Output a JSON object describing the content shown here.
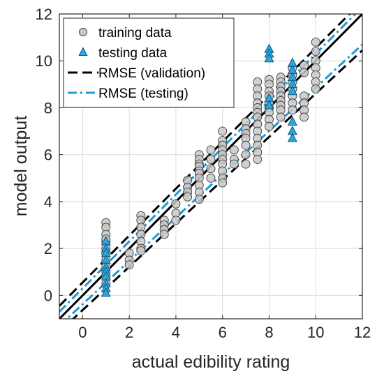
{
  "chart_data": {
    "type": "scatter",
    "title": "",
    "xlabel": "actual edibility rating",
    "ylabel": "model output",
    "xlim": [
      -1,
      12
    ],
    "ylim": [
      -1,
      12
    ],
    "xticks": [
      0,
      2,
      4,
      6,
      8,
      10,
      12
    ],
    "yticks": [
      0,
      2,
      4,
      6,
      8,
      10,
      12
    ],
    "grid": true,
    "legend_position": "top-left",
    "colors": {
      "training_fill": "#c8c8c8",
      "training_edge": "#3a3a3a",
      "testing_fill": "#2aa7dc",
      "testing_edge": "#0d4f73",
      "rmse_validation": "#000000",
      "rmse_testing": "#1e9ad6",
      "identity": "#000000"
    },
    "series": [
      {
        "name": "training data",
        "marker": "circle",
        "points": [
          [
            1,
            3.1
          ],
          [
            1,
            2.9
          ],
          [
            1,
            2.6
          ],
          [
            1,
            2.3
          ],
          [
            1,
            2.0
          ],
          [
            1,
            1.8
          ],
          [
            1,
            1.5
          ],
          [
            1,
            1.2
          ],
          [
            1,
            1.0
          ],
          [
            1,
            0.8
          ],
          [
            1,
            0.5
          ],
          [
            1,
            2.4
          ],
          [
            2,
            1.8
          ],
          [
            2,
            1.5
          ],
          [
            2,
            1.3
          ],
          [
            2.5,
            3.4
          ],
          [
            2.5,
            3.2
          ],
          [
            2.5,
            2.9
          ],
          [
            2.5,
            2.6
          ],
          [
            2.5,
            2.3
          ],
          [
            2.5,
            2.0
          ],
          [
            2.5,
            1.9
          ],
          [
            3.5,
            3.2
          ],
          [
            3.5,
            3.0
          ],
          [
            3.5,
            2.8
          ],
          [
            3.5,
            2.6
          ],
          [
            4,
            3.9
          ],
          [
            4,
            3.5
          ],
          [
            4,
            3.2
          ],
          [
            4.5,
            4.9
          ],
          [
            4.5,
            4.6
          ],
          [
            4.5,
            4.4
          ],
          [
            4.5,
            4.2
          ],
          [
            5,
            6.0
          ],
          [
            5,
            5.8
          ],
          [
            5,
            5.6
          ],
          [
            5,
            5.5
          ],
          [
            5,
            5.3
          ],
          [
            5,
            5.2
          ],
          [
            5,
            5.0
          ],
          [
            5,
            4.7
          ],
          [
            5,
            4.4
          ],
          [
            5,
            4.1
          ],
          [
            5.5,
            6.2
          ],
          [
            5.5,
            5.8
          ],
          [
            5.5,
            5.4
          ],
          [
            5.5,
            5.0
          ],
          [
            6,
            7.0
          ],
          [
            6,
            6.6
          ],
          [
            6,
            6.4
          ],
          [
            6,
            6.2
          ],
          [
            6,
            6.0
          ],
          [
            6,
            5.8
          ],
          [
            6,
            5.6
          ],
          [
            6,
            5.3
          ],
          [
            6,
            5.0
          ],
          [
            6,
            4.8
          ],
          [
            6.5,
            6.2
          ],
          [
            6.5,
            5.8
          ],
          [
            6.5,
            5.6
          ],
          [
            7,
            7.4
          ],
          [
            7,
            7.1
          ],
          [
            7,
            6.9
          ],
          [
            7,
            6.7
          ],
          [
            7,
            6.4
          ],
          [
            7,
            6.0
          ],
          [
            7,
            5.6
          ],
          [
            7.5,
            9.1
          ],
          [
            7.5,
            8.8
          ],
          [
            7.5,
            8.5
          ],
          [
            7.5,
            8.2
          ],
          [
            7.5,
            8.0
          ],
          [
            7.5,
            7.8
          ],
          [
            7.5,
            7.6
          ],
          [
            7.5,
            7.3
          ],
          [
            7.5,
            7.0
          ],
          [
            7.5,
            6.7
          ],
          [
            7.5,
            6.4
          ],
          [
            7.5,
            6.1
          ],
          [
            7.5,
            5.8
          ],
          [
            8,
            9.2
          ],
          [
            8,
            9.0
          ],
          [
            8,
            8.7
          ],
          [
            8,
            8.5
          ],
          [
            8,
            8.2
          ],
          [
            8,
            8.0
          ],
          [
            8,
            7.8
          ],
          [
            8,
            7.5
          ],
          [
            8,
            7.2
          ],
          [
            8.5,
            9.3
          ],
          [
            8.5,
            9.1
          ],
          [
            8.5,
            8.9
          ],
          [
            8.5,
            8.7
          ],
          [
            8.5,
            8.5
          ],
          [
            8.5,
            8.3
          ],
          [
            8.5,
            8.1
          ],
          [
            8.5,
            7.9
          ],
          [
            8.5,
            7.6
          ],
          [
            9,
            9.7
          ],
          [
            9,
            9.4
          ],
          [
            9,
            9.1
          ],
          [
            9,
            8.8
          ],
          [
            9,
            8.5
          ],
          [
            9,
            8.2
          ],
          [
            9,
            7.9
          ],
          [
            9.5,
            9.8
          ],
          [
            9.5,
            9.5
          ],
          [
            9.5,
            8.5
          ],
          [
            9.5,
            8.2
          ],
          [
            9.5,
            7.9
          ],
          [
            9.5,
            7.6
          ],
          [
            10,
            10.8
          ],
          [
            10,
            10.4
          ],
          [
            10,
            10.0
          ],
          [
            10,
            9.7
          ],
          [
            10,
            9.4
          ],
          [
            10,
            9.1
          ],
          [
            10,
            8.8
          ]
        ]
      },
      {
        "name": "testing data",
        "marker": "triangle",
        "points": [
          [
            1,
            2.3
          ],
          [
            1,
            2.0
          ],
          [
            1,
            1.8
          ],
          [
            1,
            1.5
          ],
          [
            1,
            1.2
          ],
          [
            1,
            1.0
          ],
          [
            1,
            0.8
          ],
          [
            1,
            0.5
          ],
          [
            1,
            0.3
          ],
          [
            1,
            0.1
          ],
          [
            8,
            10.5
          ],
          [
            8,
            10.3
          ],
          [
            8,
            10.1
          ],
          [
            8,
            8.4
          ],
          [
            8,
            8.1
          ],
          [
            9,
            9.9
          ],
          [
            9,
            9.6
          ],
          [
            9,
            9.3
          ],
          [
            9,
            9.0
          ],
          [
            9,
            8.7
          ],
          [
            9,
            7.4
          ],
          [
            9,
            7.0
          ],
          [
            9,
            6.7
          ]
        ]
      }
    ],
    "lines": [
      {
        "name": "",
        "style": "solid",
        "color_key": "identity",
        "points": [
          [
            -1,
            -1
          ],
          [
            12,
            12
          ]
        ]
      },
      {
        "name": "RMSE (validation)",
        "style": "dashed",
        "color_key": "rmse_validation",
        "points": [
          [
            -1,
            -0.45
          ],
          [
            12,
            12.55
          ]
        ]
      },
      {
        "name": "",
        "style": "dashed",
        "color_key": "rmse_validation",
        "points": [
          [
            -1,
            -1.55
          ],
          [
            12,
            10.45
          ]
        ]
      },
      {
        "name": "RMSE (testing)",
        "style": "dashdot",
        "color_key": "rmse_testing",
        "points": [
          [
            -1,
            -0.7
          ],
          [
            12,
            12.3
          ]
        ]
      },
      {
        "name": "",
        "style": "dashdot",
        "color_key": "rmse_testing",
        "points": [
          [
            -1,
            -1.3
          ],
          [
            12,
            10.7
          ]
        ]
      }
    ],
    "legend": [
      {
        "label": "training data",
        "kind": "circle"
      },
      {
        "label": "testing data",
        "kind": "triangle"
      },
      {
        "label": "RMSE (validation)",
        "kind": "dashed"
      },
      {
        "label": "RMSE (testing)",
        "kind": "dashdot"
      }
    ]
  }
}
